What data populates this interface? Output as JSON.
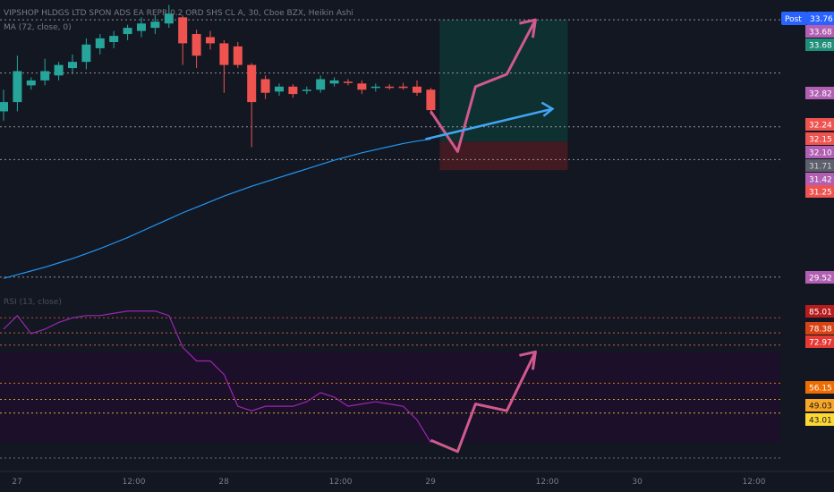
{
  "header": {
    "symbol_line": "VIPSHOP HLDGS LTD SPON ADS EA REPR 0.2 ORD SHS CL A, 30, Cboe BZX, Heikin Ashi",
    "ma_line": "MA (72, close, 0)",
    "post_badge": "Post",
    "post_price": "33.76"
  },
  "colors": {
    "background": "#131722",
    "up": "#26a69a",
    "down": "#ef5350",
    "ma": "#2196f3",
    "rsi": "#9c27b0",
    "arrow_pink": "#d05a8c",
    "arrow_blue": "#42a5f5",
    "target_zone": "#0e3a36",
    "stop_zone": "#4a1b22",
    "rsi_band": "#1c0f2a",
    "gridline": "#c8c8c8"
  },
  "chart_data": [
    {
      "type": "candlestick",
      "panel": "price",
      "style": "Heikin Ashi",
      "interval": "30",
      "ylim": [
        29.3,
        34.0
      ],
      "candles": [
        {
          "o": 32.2,
          "h": 32.55,
          "l": 32.05,
          "c": 32.35
        },
        {
          "o": 32.35,
          "h": 33.1,
          "l": 32.2,
          "c": 32.85
        },
        {
          "o": 32.62,
          "h": 32.75,
          "l": 32.55,
          "c": 32.7
        },
        {
          "o": 32.7,
          "h": 33.05,
          "l": 32.62,
          "c": 32.85
        },
        {
          "o": 32.78,
          "h": 33.0,
          "l": 32.7,
          "c": 32.95
        },
        {
          "o": 32.9,
          "h": 33.12,
          "l": 32.8,
          "c": 33.0
        },
        {
          "o": 33.0,
          "h": 33.38,
          "l": 32.88,
          "c": 33.28
        },
        {
          "o": 33.22,
          "h": 33.45,
          "l": 33.12,
          "c": 33.38
        },
        {
          "o": 33.32,
          "h": 33.5,
          "l": 33.22,
          "c": 33.42
        },
        {
          "o": 33.45,
          "h": 33.6,
          "l": 33.35,
          "c": 33.55
        },
        {
          "o": 33.5,
          "h": 33.72,
          "l": 33.4,
          "c": 33.62
        },
        {
          "o": 33.55,
          "h": 33.75,
          "l": 33.45,
          "c": 33.65
        },
        {
          "o": 33.62,
          "h": 33.92,
          "l": 33.55,
          "c": 33.78
        },
        {
          "o": 33.72,
          "h": 33.75,
          "l": 32.95,
          "c": 33.3
        },
        {
          "o": 33.45,
          "h": 33.52,
          "l": 32.9,
          "c": 33.1
        },
        {
          "o": 33.4,
          "h": 33.5,
          "l": 33.2,
          "c": 33.3
        },
        {
          "o": 33.3,
          "h": 33.35,
          "l": 32.5,
          "c": 32.95
        },
        {
          "o": 33.25,
          "h": 33.32,
          "l": 32.9,
          "c": 32.95
        },
        {
          "o": 32.95,
          "h": 32.98,
          "l": 31.62,
          "c": 32.35
        },
        {
          "o": 32.72,
          "h": 32.78,
          "l": 32.4,
          "c": 32.5
        },
        {
          "o": 32.52,
          "h": 32.65,
          "l": 32.45,
          "c": 32.6
        },
        {
          "o": 32.6,
          "h": 32.64,
          "l": 32.42,
          "c": 32.48
        },
        {
          "o": 32.55,
          "h": 32.6,
          "l": 32.48,
          "c": 32.55
        },
        {
          "o": 32.55,
          "h": 32.78,
          "l": 32.5,
          "c": 32.72
        },
        {
          "o": 32.65,
          "h": 32.75,
          "l": 32.6,
          "c": 32.7
        },
        {
          "o": 32.68,
          "h": 32.72,
          "l": 32.62,
          "c": 32.66
        },
        {
          "o": 32.65,
          "h": 32.7,
          "l": 32.48,
          "c": 32.55
        },
        {
          "o": 32.6,
          "h": 32.65,
          "l": 32.52,
          "c": 32.6
        },
        {
          "o": 32.6,
          "h": 32.64,
          "l": 32.55,
          "c": 32.58
        },
        {
          "o": 32.6,
          "h": 32.66,
          "l": 32.55,
          "c": 32.58
        },
        {
          "o": 32.6,
          "h": 32.7,
          "l": 32.45,
          "c": 32.5
        },
        {
          "o": 32.55,
          "h": 32.58,
          "l": 32.15,
          "c": 32.22
        }
      ],
      "ma": [
        29.5,
        29.56,
        29.62,
        29.68,
        29.75,
        29.82,
        29.9,
        29.98,
        30.07,
        30.16,
        30.26,
        30.36,
        30.46,
        30.56,
        30.65,
        30.74,
        30.83,
        30.91,
        30.99,
        31.06,
        31.13,
        31.2,
        31.27,
        31.34,
        31.41,
        31.47,
        31.53,
        31.58,
        31.63,
        31.68,
        31.72,
        31.75
      ],
      "price_labels": [
        {
          "text": "33.68",
          "color": "#b15fb3"
        },
        {
          "text": "33.68",
          "color": "#1f8f7a"
        },
        {
          "text": "32.82",
          "color": "#b15fb3"
        },
        {
          "text": "32.24",
          "color": "#ef5350"
        },
        {
          "text": "32.15",
          "color": "#ef5350"
        },
        {
          "text": "32.10",
          "color": "#b15fb3"
        },
        {
          "text": "31.71",
          "color": "#5d606b"
        },
        {
          "text": "31.42",
          "color": "#b15fb3"
        },
        {
          "text": "31.25",
          "color": "#ef5350"
        },
        {
          "text": "29.52",
          "color": "#b15fb3"
        }
      ],
      "dotted_levels": [
        33.68,
        32.82,
        31.95,
        31.42,
        29.52
      ],
      "position": {
        "entry": 31.71,
        "target": 33.68,
        "stop": 31.25
      }
    },
    {
      "type": "line",
      "panel": "rsi",
      "title": "RSI (13, close)",
      "ylim": [
        20,
        95
      ],
      "values": [
        80,
        86,
        78,
        80,
        83,
        85,
        86,
        86,
        87,
        88,
        88,
        88,
        86,
        72,
        66,
        66,
        60,
        46,
        44,
        46,
        46,
        46,
        48,
        52,
        50,
        46,
        47,
        48,
        47,
        46,
        40,
        30
      ],
      "dotted_levels": [
        85.01,
        78.38,
        72.97,
        56.15,
        49.03,
        43.01
      ],
      "band": [
        30,
        70
      ],
      "level_labels": [
        {
          "text": "85.01",
          "color": "#b71c1c"
        },
        {
          "text": "78.38",
          "color": "#d84315"
        },
        {
          "text": "72.97",
          "color": "#e53935"
        },
        {
          "text": "56.15",
          "color": "#ef6c00"
        },
        {
          "text": "49.03",
          "color": "#f9a825"
        },
        {
          "text": "43.01",
          "color": "#fdd835"
        }
      ]
    }
  ],
  "x_axis": {
    "ticks": [
      {
        "label": "27",
        "i": 1
      },
      {
        "label": "12:00",
        "i": 9
      },
      {
        "label": "28",
        "i": 16
      },
      {
        "label": "12:00",
        "i": 24
      },
      {
        "label": "29",
        "i": 31
      },
      {
        "label": "12:00",
        "i": 39
      },
      {
        "label": "30",
        "i": 46
      },
      {
        "label": "12:00",
        "i": 54
      }
    ]
  }
}
